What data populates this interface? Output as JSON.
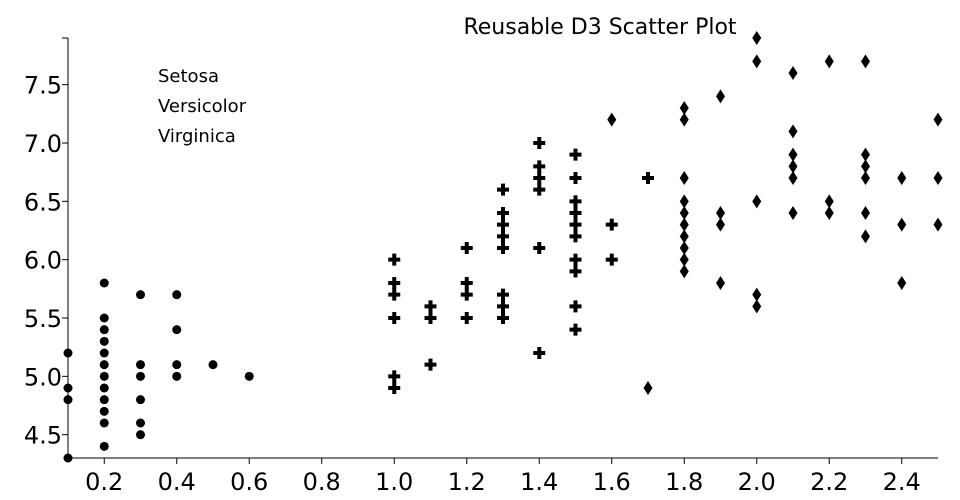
{
  "chart_data": {
    "type": "scatter",
    "title": "Reusable D3 Scatter Plot",
    "xlabel": "",
    "ylabel": "",
    "xlim": [
      0.1,
      2.5
    ],
    "ylim": [
      4.3,
      7.9
    ],
    "x_ticks": [
      "0.2",
      "0.4",
      "0.6",
      "0.8",
      "1.0",
      "1.2",
      "1.4",
      "1.6",
      "1.8",
      "2.0",
      "2.2",
      "2.4"
    ],
    "x_tick_values": [
      0.2,
      0.4,
      0.6,
      0.8,
      1.0,
      1.2,
      1.4,
      1.6,
      1.8,
      2.0,
      2.2,
      2.4
    ],
    "y_ticks": [
      "4.5",
      "5.0",
      "5.5",
      "6.0",
      "6.5",
      "7.0",
      "7.5"
    ],
    "y_tick_values": [
      4.5,
      5.0,
      5.5,
      6.0,
      6.5,
      7.0,
      7.5
    ],
    "grid": false,
    "legend_position": "top-left",
    "series": [
      {
        "name": "Setosa",
        "symbol": "circle",
        "points": [
          [
            0.1,
            5.2
          ],
          [
            0.1,
            4.9
          ],
          [
            0.1,
            4.8
          ],
          [
            0.1,
            4.3
          ],
          [
            0.2,
            5.8
          ],
          [
            0.2,
            5.5
          ],
          [
            0.2,
            5.4
          ],
          [
            0.2,
            5.3
          ],
          [
            0.2,
            5.2
          ],
          [
            0.2,
            5.1
          ],
          [
            0.2,
            5.0
          ],
          [
            0.2,
            4.9
          ],
          [
            0.2,
            4.8
          ],
          [
            0.2,
            4.7
          ],
          [
            0.2,
            4.6
          ],
          [
            0.2,
            4.4
          ],
          [
            0.3,
            5.7
          ],
          [
            0.3,
            5.1
          ],
          [
            0.3,
            5.0
          ],
          [
            0.3,
            4.8
          ],
          [
            0.3,
            4.6
          ],
          [
            0.3,
            4.5
          ],
          [
            0.4,
            5.7
          ],
          [
            0.4,
            5.4
          ],
          [
            0.4,
            5.1
          ],
          [
            0.4,
            5.0
          ],
          [
            0.5,
            5.1
          ],
          [
            0.6,
            5.0
          ]
        ]
      },
      {
        "name": "Versicolor",
        "symbol": "cross",
        "points": [
          [
            1.0,
            6.0
          ],
          [
            1.0,
            5.8
          ],
          [
            1.0,
            5.7
          ],
          [
            1.0,
            5.5
          ],
          [
            1.0,
            5.0
          ],
          [
            1.0,
            4.9
          ],
          [
            1.1,
            5.6
          ],
          [
            1.1,
            5.5
          ],
          [
            1.1,
            5.1
          ],
          [
            1.2,
            6.1
          ],
          [
            1.2,
            5.8
          ],
          [
            1.2,
            5.7
          ],
          [
            1.2,
            5.5
          ],
          [
            1.3,
            6.6
          ],
          [
            1.3,
            6.4
          ],
          [
            1.3,
            6.3
          ],
          [
            1.3,
            6.2
          ],
          [
            1.3,
            6.1
          ],
          [
            1.3,
            5.7
          ],
          [
            1.3,
            5.6
          ],
          [
            1.3,
            5.5
          ],
          [
            1.4,
            7.0
          ],
          [
            1.4,
            6.8
          ],
          [
            1.4,
            6.7
          ],
          [
            1.4,
            6.6
          ],
          [
            1.4,
            6.1
          ],
          [
            1.4,
            5.2
          ],
          [
            1.5,
            6.9
          ],
          [
            1.5,
            6.7
          ],
          [
            1.5,
            6.5
          ],
          [
            1.5,
            6.4
          ],
          [
            1.5,
            6.3
          ],
          [
            1.5,
            6.2
          ],
          [
            1.5,
            6.0
          ],
          [
            1.5,
            5.9
          ],
          [
            1.5,
            5.6
          ],
          [
            1.5,
            5.4
          ],
          [
            1.6,
            6.3
          ],
          [
            1.6,
            6.0
          ],
          [
            1.7,
            6.7
          ]
        ]
      },
      {
        "name": "Virginica",
        "symbol": "diamond",
        "points": [
          [
            1.6,
            7.2
          ],
          [
            1.7,
            4.9
          ],
          [
            1.8,
            7.3
          ],
          [
            1.8,
            7.2
          ],
          [
            1.8,
            6.7
          ],
          [
            1.8,
            6.5
          ],
          [
            1.8,
            6.4
          ],
          [
            1.8,
            6.3
          ],
          [
            1.8,
            6.2
          ],
          [
            1.8,
            6.1
          ],
          [
            1.8,
            6.0
          ],
          [
            1.8,
            5.9
          ],
          [
            1.9,
            7.4
          ],
          [
            1.9,
            6.4
          ],
          [
            1.9,
            6.3
          ],
          [
            1.9,
            5.8
          ],
          [
            2.0,
            7.9
          ],
          [
            2.0,
            7.7
          ],
          [
            2.0,
            6.5
          ],
          [
            2.0,
            5.7
          ],
          [
            2.0,
            5.6
          ],
          [
            2.1,
            7.6
          ],
          [
            2.1,
            7.1
          ],
          [
            2.1,
            6.9
          ],
          [
            2.1,
            6.8
          ],
          [
            2.1,
            6.7
          ],
          [
            2.1,
            6.4
          ],
          [
            2.2,
            7.7
          ],
          [
            2.2,
            6.5
          ],
          [
            2.2,
            6.4
          ],
          [
            2.3,
            7.7
          ],
          [
            2.3,
            6.9
          ],
          [
            2.3,
            6.8
          ],
          [
            2.3,
            6.7
          ],
          [
            2.3,
            6.4
          ],
          [
            2.3,
            6.2
          ],
          [
            2.4,
            6.7
          ],
          [
            2.4,
            6.3
          ],
          [
            2.4,
            5.8
          ],
          [
            2.5,
            7.2
          ],
          [
            2.5,
            6.7
          ],
          [
            2.5,
            6.3
          ]
        ]
      }
    ]
  }
}
